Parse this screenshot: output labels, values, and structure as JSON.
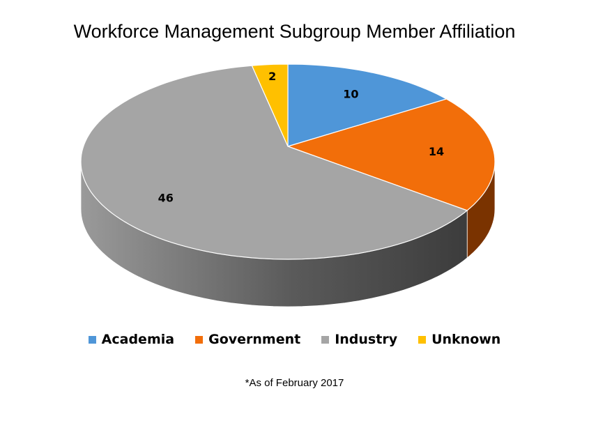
{
  "chart_data": {
    "type": "pie",
    "style": "3d",
    "title": "Workforce Management Subgroup Member Affiliation",
    "categories": [
      "Academia",
      "Government",
      "Industry",
      "Unknown"
    ],
    "values": [
      10,
      14,
      46,
      2
    ],
    "colors": [
      "#4F96D8",
      "#F26E0A",
      "#A5A5A5",
      "#FFC000"
    ],
    "side_colors": [
      "#2E5F8F",
      "#7A3300",
      "#6A6A6A",
      "#A07A00"
    ],
    "legend_position": "bottom",
    "footnote": "*As of February 2017"
  }
}
